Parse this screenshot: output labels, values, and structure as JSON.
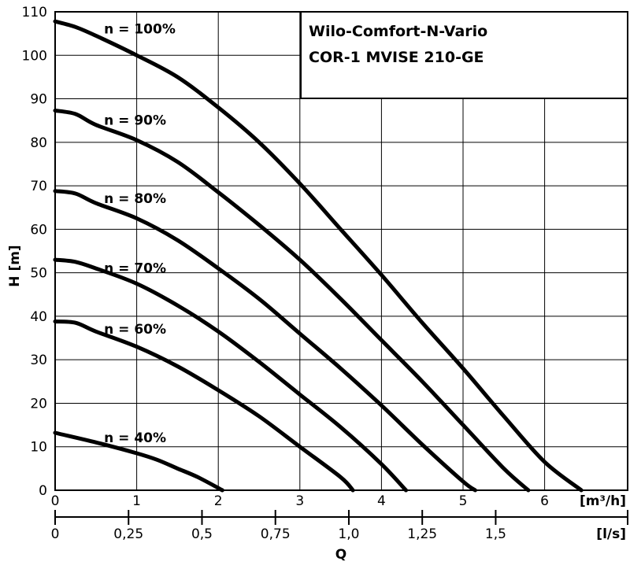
{
  "chart_data": {
    "type": "line",
    "title_lines": [
      "Wilo-Comfort-N-Vario",
      "COR-1 MVISE 210-GE"
    ],
    "ylabel": "H [m]",
    "xlabel": "Q",
    "x_unit": "[m³/h]",
    "x2_unit": "[l/s]",
    "xlim": [
      0,
      7
    ],
    "ylim": [
      0,
      110
    ],
    "x_ticks": [
      0,
      1,
      2,
      3,
      4,
      5,
      6
    ],
    "y_ticks": [
      0,
      10,
      20,
      30,
      40,
      50,
      60,
      70,
      80,
      90,
      100,
      110
    ],
    "x2_ticks": [
      "0",
      "0,25",
      "0,5",
      "0,75",
      "1,0",
      "1,25",
      "1,5"
    ],
    "x2_values": [
      0,
      0.25,
      0.5,
      0.75,
      1.0,
      1.25,
      1.5
    ],
    "grid": true,
    "series": [
      {
        "name": "n = 100%",
        "x": [
          0,
          0.25,
          0.5,
          1.0,
          1.5,
          2.0,
          2.5,
          3.0,
          3.5,
          4.0,
          4.5,
          5.0,
          5.5,
          6.0,
          6.45
        ],
        "y": [
          107.8,
          106.5,
          104.5,
          100,
          95,
          88,
          80,
          70.5,
          60,
          49.5,
          38.5,
          28,
          17,
          6.5,
          0
        ]
      },
      {
        "name": "n = 90%",
        "x": [
          0,
          0.25,
          0.5,
          1.0,
          1.5,
          2.0,
          2.5,
          3.0,
          3.5,
          4.0,
          4.5,
          5.0,
          5.5,
          5.8
        ],
        "y": [
          87.3,
          86.5,
          84,
          80.5,
          75.5,
          68.5,
          61,
          53,
          44,
          34.5,
          25,
          15,
          5,
          0
        ]
      },
      {
        "name": "n = 80%",
        "x": [
          0,
          0.25,
          0.5,
          1.0,
          1.5,
          2.0,
          2.5,
          3.0,
          3.5,
          4.0,
          4.5,
          5.0,
          5.15
        ],
        "y": [
          68.8,
          68.2,
          66,
          62.5,
          57.5,
          51,
          44,
          36,
          28,
          19.5,
          10.5,
          2,
          0
        ]
      },
      {
        "name": "n = 70%",
        "x": [
          0,
          0.25,
          0.5,
          1.0,
          1.5,
          2.0,
          2.5,
          3.0,
          3.5,
          4.0,
          4.3
        ],
        "y": [
          53,
          52.5,
          51,
          47.5,
          42.5,
          36.5,
          29.5,
          22,
          14.5,
          6,
          0
        ]
      },
      {
        "name": "n = 60%",
        "x": [
          0,
          0.25,
          0.5,
          1.0,
          1.5,
          2.0,
          2.5,
          3.0,
          3.5,
          3.65
        ],
        "y": [
          38.8,
          38.5,
          36.5,
          33,
          28.5,
          23,
          17,
          10,
          3,
          0
        ]
      },
      {
        "name": "n = 40%",
        "x": [
          0,
          0.5,
          1.0,
          1.25,
          1.5,
          1.75,
          2.05
        ],
        "y": [
          13.2,
          11,
          8.5,
          7,
          5,
          3,
          0
        ]
      }
    ],
    "series_labels": [
      {
        "text": "n = 100%",
        "x": 0.6,
        "y": 105
      },
      {
        "text": "n = 90%",
        "x": 0.6,
        "y": 84
      },
      {
        "text": "n = 80%",
        "x": 0.6,
        "y": 66
      },
      {
        "text": "n = 70%",
        "x": 0.6,
        "y": 50
      },
      {
        "text": "n = 60%",
        "x": 0.6,
        "y": 36
      },
      {
        "text": "n = 40%",
        "x": 0.6,
        "y": 11
      }
    ]
  }
}
